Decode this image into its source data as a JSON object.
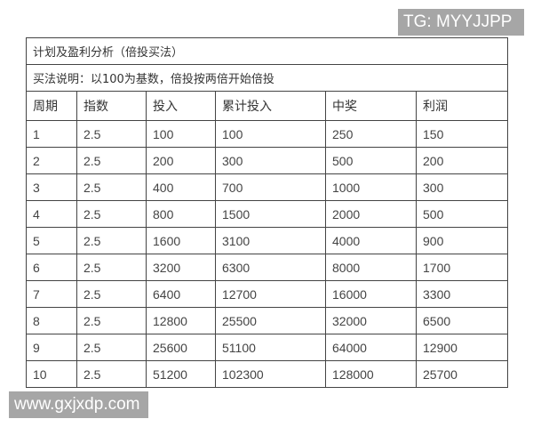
{
  "watermarks": {
    "top_right": "TG: MYYJJPP",
    "bottom_left": "www.gxjxdp.com"
  },
  "table": {
    "title": "计划及盈利分析（倍投买法）",
    "subtitle": "买法说明：以100为基数，倍投按两倍开始倍投",
    "columns": [
      "周期",
      "指数",
      "投入",
      "累计投入",
      "中奖",
      "利润"
    ],
    "rows": [
      [
        "1",
        "2.5",
        "100",
        "100",
        "250",
        "150"
      ],
      [
        "2",
        "2.5",
        "200",
        "300",
        "500",
        "200"
      ],
      [
        "3",
        "2.5",
        "400",
        "700",
        "1000",
        "300"
      ],
      [
        "4",
        "2.5",
        "800",
        "1500",
        "2000",
        "500"
      ],
      [
        "5",
        "2.5",
        "1600",
        "3100",
        "4000",
        "900"
      ],
      [
        "6",
        "2.5",
        "3200",
        "6300",
        "8000",
        "1700"
      ],
      [
        "7",
        "2.5",
        "6400",
        "12700",
        "16000",
        "3300"
      ],
      [
        "8",
        "2.5",
        "12800",
        "25500",
        "32000",
        "6500"
      ],
      [
        "9",
        "2.5",
        "25600",
        "51100",
        "64000",
        "12900"
      ],
      [
        "10",
        "2.5",
        "51200",
        "102300",
        "128000",
        "25700"
      ]
    ]
  }
}
